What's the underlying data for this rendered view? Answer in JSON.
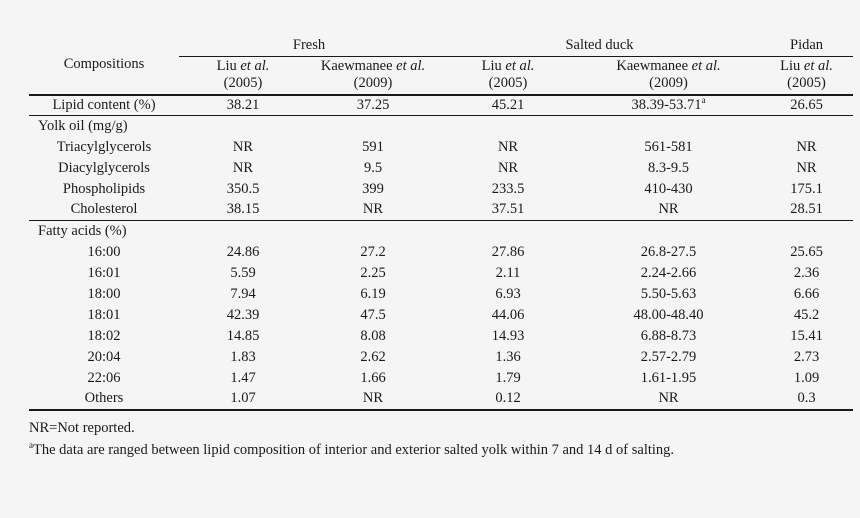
{
  "colors": {
    "background": "#f5f5f6",
    "text": "#1a1a1a",
    "rule": "#1a1a1a"
  },
  "table": {
    "corner_label": "Compositions",
    "group_headers": [
      {
        "label": "Fresh",
        "colspan": 2
      },
      {
        "label": "Salted duck",
        "colspan": 2
      },
      {
        "label": "Pidan",
        "colspan": 1
      }
    ],
    "column_headers": [
      {
        "name": "Liu",
        "etal": "et al.",
        "year": "(2005)"
      },
      {
        "name": "Kaewmanee",
        "etal": "et al.",
        "year": "(2009)"
      },
      {
        "name": "Liu",
        "etal": "et al.",
        "year": "(2005)"
      },
      {
        "name": "Kaewmanee",
        "etal": "et al.",
        "year": "(2009)"
      },
      {
        "name": "Liu",
        "etal": "et al.",
        "year": "(2005)"
      }
    ],
    "sections": [
      {
        "header": null,
        "rows": [
          {
            "label": "Lipid content (%)",
            "values": [
              "38.21",
              "37.25",
              "45.21",
              "38.39-53.71^a",
              "26.65"
            ]
          }
        ]
      },
      {
        "header": "Yolk oil (mg/g)",
        "rows": [
          {
            "label": "Triacylglycerols",
            "values": [
              "NR",
              "591",
              "NR",
              "561-581",
              "NR"
            ]
          },
          {
            "label": "Diacylglycerols",
            "values": [
              "NR",
              "9.5",
              "NR",
              "8.3-9.5",
              "NR"
            ]
          },
          {
            "label": "Phospholipids",
            "values": [
              "350.5",
              "399",
              "233.5",
              "410-430",
              "175.1"
            ]
          },
          {
            "label": "Cholesterol",
            "values": [
              "38.15",
              "NR",
              "37.51",
              "NR",
              "28.51"
            ]
          }
        ]
      },
      {
        "header": "Fatty acids (%)",
        "rows": [
          {
            "label": "16:00",
            "values": [
              "24.86",
              "27.2",
              "27.86",
              "26.8-27.5",
              "25.65"
            ]
          },
          {
            "label": "16:01",
            "values": [
              "5.59",
              "2.25",
              "2.11",
              "2.24-2.66",
              "2.36"
            ]
          },
          {
            "label": "18:00",
            "values": [
              "7.94",
              "6.19",
              "6.93",
              "5.50-5.63",
              "6.66"
            ]
          },
          {
            "label": "18:01",
            "values": [
              "42.39",
              "47.5",
              "44.06",
              "48.00-48.40",
              "45.2"
            ]
          },
          {
            "label": "18:02",
            "values": [
              "14.85",
              "8.08",
              "14.93",
              "6.88-8.73",
              "15.41"
            ]
          },
          {
            "label": "20:04",
            "values": [
              "1.83",
              "2.62",
              "1.36",
              "2.57-2.79",
              "2.73"
            ]
          },
          {
            "label": "22:06",
            "values": [
              "1.47",
              "1.66",
              "1.79",
              "1.61-1.95",
              "1.09"
            ]
          },
          {
            "label": "Others",
            "values": [
              "1.07",
              "NR",
              "0.12",
              "NR",
              "0.3"
            ]
          }
        ]
      }
    ]
  },
  "footnotes": [
    {
      "marker": "",
      "text": "NR=Not reported."
    },
    {
      "marker": "a",
      "text": "The data are ranged between lipid composition of interior and exterior salted yolk within 7 and 14 d of salting."
    }
  ]
}
